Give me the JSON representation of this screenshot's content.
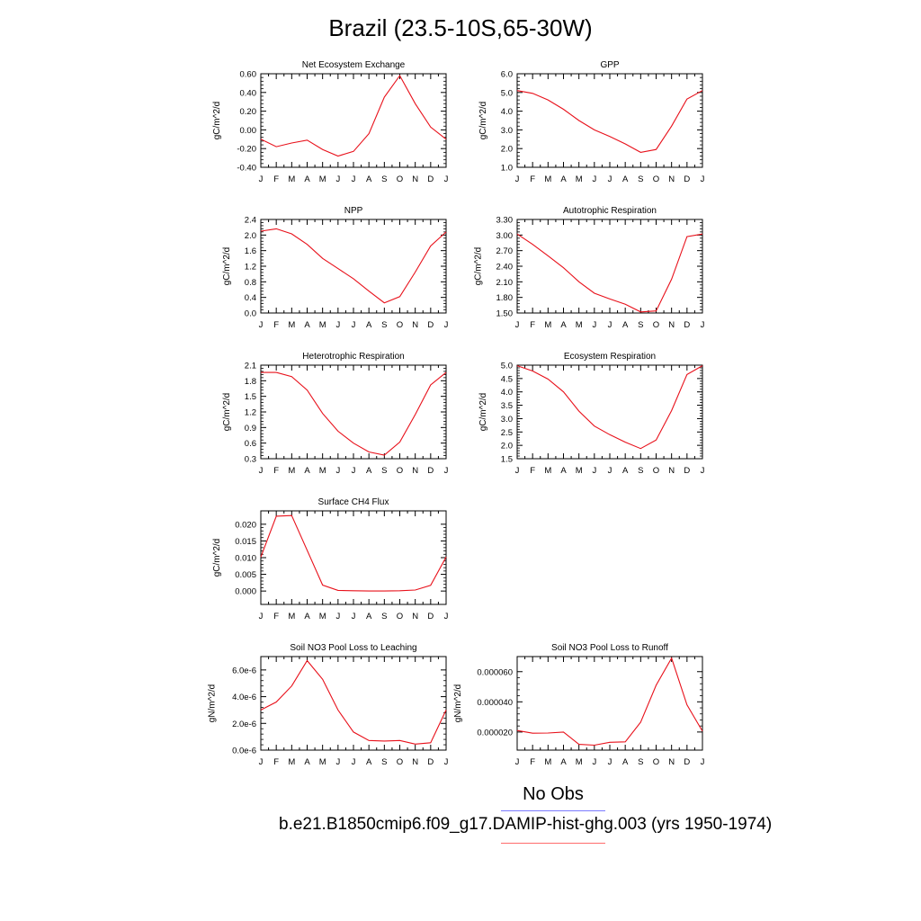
{
  "title": "Brazil (23.5-10S,65-30W)",
  "legend": {
    "obs_label": "No Obs",
    "obs_color": "#7b7bff",
    "model_label": "b.e21.B1850cmip6.f09_g17.DAMIP-hist-ghg.003 (yrs 1950-1974)",
    "model_color": "#ff6b6b"
  },
  "line_color": "#e8101a",
  "chart_data": [
    {
      "type": "line",
      "title": "Net Ecosystem Exchange",
      "ylabel": "gC/m^2/d",
      "x": [
        "J",
        "F",
        "M",
        "A",
        "M",
        "J",
        "J",
        "A",
        "S",
        "O",
        "N",
        "D",
        "J"
      ],
      "ylim": [
        -0.4,
        0.6
      ],
      "yticks": [
        "-0.40",
        "-0.20",
        "0.00",
        "0.20",
        "0.40",
        "0.60"
      ],
      "values": [
        -0.1,
        -0.18,
        -0.14,
        -0.11,
        -0.21,
        -0.28,
        -0.23,
        -0.04,
        0.35,
        0.58,
        0.28,
        0.03,
        -0.1
      ]
    },
    {
      "type": "line",
      "title": "GPP",
      "ylabel": "gC/m^2/d",
      "x": [
        "J",
        "F",
        "M",
        "A",
        "M",
        "J",
        "J",
        "A",
        "S",
        "O",
        "N",
        "D",
        "J"
      ],
      "ylim": [
        1.0,
        6.0
      ],
      "yticks": [
        "1.0",
        "2.0",
        "3.0",
        "4.0",
        "5.0",
        "6.0"
      ],
      "values": [
        5.1,
        4.95,
        4.6,
        4.1,
        3.5,
        3.0,
        2.65,
        2.25,
        1.8,
        1.95,
        3.2,
        4.65,
        5.1
      ]
    },
    {
      "type": "line",
      "title": "NPP",
      "ylabel": "gC/m^2/d",
      "x": [
        "J",
        "F",
        "M",
        "A",
        "M",
        "J",
        "J",
        "A",
        "S",
        "O",
        "N",
        "D",
        "J"
      ],
      "ylim": [
        0.0,
        2.4
      ],
      "yticks": [
        "0.0",
        "0.4",
        "0.8",
        "1.2",
        "1.6",
        "2.0",
        "2.4"
      ],
      "values": [
        2.1,
        2.16,
        2.03,
        1.76,
        1.4,
        1.14,
        0.88,
        0.56,
        0.26,
        0.42,
        1.05,
        1.72,
        2.08
      ]
    },
    {
      "type": "line",
      "title": "Autotrophic Respiration",
      "ylabel": "gC/m^2/d",
      "x": [
        "J",
        "F",
        "M",
        "A",
        "M",
        "J",
        "J",
        "A",
        "S",
        "O",
        "N",
        "D",
        "J"
      ],
      "ylim": [
        1.5,
        3.3
      ],
      "yticks": [
        "1.50",
        "1.80",
        "2.10",
        "2.40",
        "2.70",
        "3.00",
        "3.30"
      ],
      "values": [
        3.02,
        2.82,
        2.6,
        2.37,
        2.1,
        1.88,
        1.77,
        1.67,
        1.52,
        1.54,
        2.15,
        2.97,
        3.02
      ]
    },
    {
      "type": "line",
      "title": "Heterotrophic Respiration",
      "ylabel": "gC/m^2/d",
      "x": [
        "J",
        "F",
        "M",
        "A",
        "M",
        "J",
        "J",
        "A",
        "S",
        "O",
        "N",
        "D",
        "J"
      ],
      "ylim": [
        0.3,
        2.1
      ],
      "yticks": [
        "0.3",
        "0.6",
        "0.9",
        "1.2",
        "1.5",
        "1.8",
        "2.1"
      ],
      "values": [
        1.96,
        1.96,
        1.88,
        1.62,
        1.17,
        0.83,
        0.6,
        0.43,
        0.37,
        0.62,
        1.15,
        1.72,
        1.96
      ]
    },
    {
      "type": "line",
      "title": "Ecosystem Respiration",
      "ylabel": "gC/m^2/d",
      "x": [
        "J",
        "F",
        "M",
        "A",
        "M",
        "J",
        "J",
        "A",
        "S",
        "O",
        "N",
        "D",
        "J"
      ],
      "ylim": [
        1.5,
        5.0
      ],
      "yticks": [
        "1.5",
        "2.0",
        "2.5",
        "3.0",
        "3.5",
        "4.0",
        "4.5",
        "5.0"
      ],
      "values": [
        4.98,
        4.78,
        4.48,
        4.0,
        3.28,
        2.72,
        2.4,
        2.12,
        1.88,
        2.2,
        3.3,
        4.65,
        4.98
      ]
    },
    {
      "type": "line",
      "title": "Surface CH4 Flux",
      "ylabel": "gC/m^2/d",
      "x": [
        "J",
        "F",
        "M",
        "A",
        "M",
        "J",
        "J",
        "A",
        "S",
        "O",
        "N",
        "D",
        "J"
      ],
      "ylim": [
        -0.004,
        0.024
      ],
      "yticks": [
        "0.000",
        "0.005",
        "0.010",
        "0.015",
        "0.020"
      ],
      "ytick_values": [
        0.0,
        0.005,
        0.01,
        0.015,
        0.02
      ],
      "values": [
        0.0102,
        0.0224,
        0.0226,
        0.0122,
        0.0018,
        0.0002,
        0.0001,
        0.0,
        0.0,
        0.0001,
        0.0003,
        0.0017,
        0.0102
      ]
    },
    {
      "type": "line",
      "title": "Soil NO3 Pool Loss to Leaching",
      "ylabel": "gN/m^2/d",
      "x": [
        "J",
        "F",
        "M",
        "A",
        "M",
        "J",
        "J",
        "A",
        "S",
        "O",
        "N",
        "D",
        "J"
      ],
      "ylim": [
        0.0,
        7e-06
      ],
      "yticks": [
        "0.0e-6",
        "2.0e-6",
        "4.0e-6",
        "6.0e-6"
      ],
      "ytick_values": [
        0.0,
        2e-06,
        4e-06,
        6e-06
      ],
      "values": [
        3e-06,
        3.6e-06,
        4.8e-06,
        6.7e-06,
        5.3e-06,
        3e-06,
        1.35e-06,
        7.2e-07,
        6.8e-07,
        7.2e-07,
        4.5e-07,
        5.5e-07,
        3e-06
      ]
    },
    {
      "type": "line",
      "title": "Soil NO3 Pool Loss to Runoff",
      "ylabel": "gN/m^2/d",
      "x": [
        "J",
        "F",
        "M",
        "A",
        "M",
        "J",
        "J",
        "A",
        "S",
        "O",
        "N",
        "D",
        "J"
      ],
      "ylim": [
        8e-06,
        7e-05
      ],
      "yticks": [
        "0.000020",
        "0.000040",
        "0.000060"
      ],
      "ytick_values": [
        2e-05,
        4e-05,
        6e-05
      ],
      "values": [
        2.1e-05,
        1.92e-05,
        1.93e-05,
        2e-05,
        1.18e-05,
        1.13e-05,
        1.32e-05,
        1.35e-05,
        2.65e-05,
        5.1e-05,
        6.9e-05,
        3.8e-05,
        2.05e-05
      ]
    }
  ]
}
